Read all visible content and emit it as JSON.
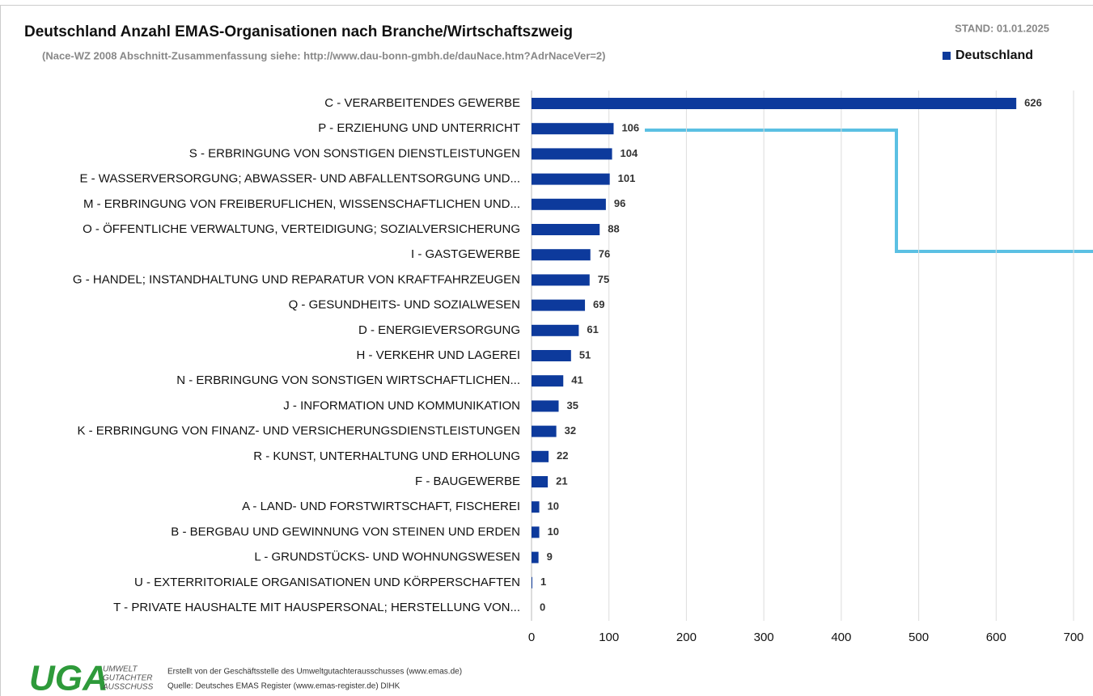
{
  "chart_data": {
    "type": "barh",
    "title": "Deutschland Anzahl EMAS-Organisationen nach Branche/Wirtschaftszweig",
    "subtitle": "(Nace-WZ 2008 Abschnitt-Zusammenfassung siehe: http://www.dau-bonn-gmbh.de/dauNace.htm?AdrNaceVer=2)",
    "annotation": "STAND: 01.01.2025",
    "categories": [
      "C - VERARBEITENDES GEWERBE",
      "P - ERZIEHUNG UND UNTERRICHT",
      "S - ERBRINGUNG VON SONSTIGEN DIENSTLEISTUNGEN",
      "E - WASSERVERSORGUNG; ABWASSER- UND ABFALLENTSORGUNG UND...",
      "M - ERBRINGUNG VON FREIBERUFLICHEN, WISSENSCHAFTLICHEN UND...",
      "O - ÖFFENTLICHE VERWALTUNG, VERTEIDIGUNG; SOZIALVERSICHERUNG",
      "I - GASTGEWERBE",
      "G - HANDEL; INSTANDHALTUNG UND REPARATUR VON KRAFTFAHRZEUGEN",
      "Q - GESUNDHEITS- UND SOZIALWESEN",
      "D - ENERGIEVERSORGUNG",
      "H - VERKEHR UND LAGEREI",
      "N - ERBRINGUNG VON SONSTIGEN WIRTSCHAFTLICHEN...",
      "J - INFORMATION UND KOMMUNIKATION",
      "K - ERBRINGUNG VON FINANZ- UND VERSICHERUNGSDIENSTLEISTUNGEN",
      "R - KUNST, UNTERHALTUNG UND ERHOLUNG",
      "F - BAUGEWERBE",
      "A - LAND- UND FORSTWIRTSCHAFT, FISCHEREI",
      "B - BERGBAU UND GEWINNUNG VON STEINEN UND ERDEN",
      "L - GRUNDSTÜCKS- UND WOHNUNGSWESEN",
      "U - EXTERRITORIALE ORGANISATIONEN UND KÖRPERSCHAFTEN",
      "T - PRIVATE HAUSHALTE MIT HAUSPERSONAL; HERSTELLUNG VON..."
    ],
    "series": [
      {
        "name": "Deutschland",
        "color": "#0d3a9c",
        "values": [
          626,
          106,
          104,
          101,
          96,
          88,
          76,
          75,
          69,
          61,
          51,
          41,
          35,
          32,
          22,
          21,
          10,
          10,
          9,
          1,
          0
        ]
      }
    ],
    "xlim": [
      0,
      700
    ],
    "xticks": [
      0,
      100,
      200,
      300,
      400,
      500,
      600,
      700
    ],
    "grid": true,
    "legend": "upper right",
    "data_labels": true
  },
  "footer": {
    "logo": "UGA",
    "logo_lines": [
      "UMWELT",
      "GUTACHTER",
      "AUSSCHUSS"
    ],
    "lines": [
      "Erstellt von der Geschäftsstelle des Umweltgutachterausschusses (www.emas.de)",
      "Quelle: Deutsches EMAS Register (www.emas-register.de) DIHK"
    ]
  }
}
